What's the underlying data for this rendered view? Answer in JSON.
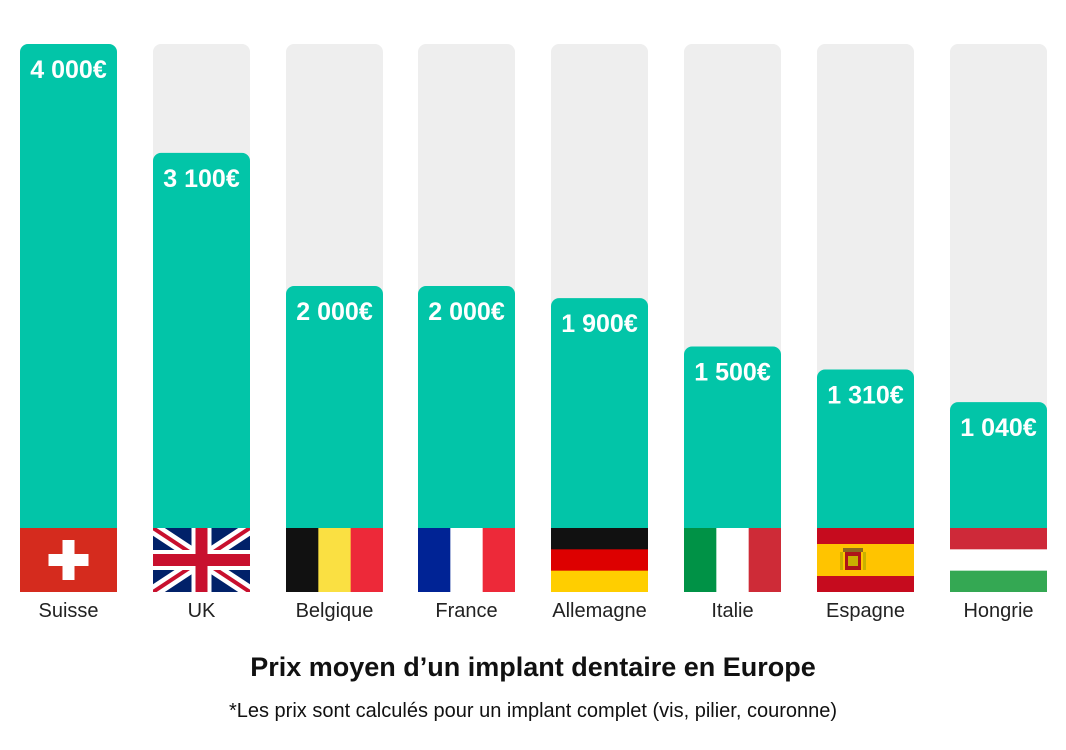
{
  "chart_data": {
    "type": "bar",
    "title": "Prix moyen d’un implant dentaire en Europe",
    "subtitle": "*Les prix sont calculés pour un implant complet (vis, pilier, couronne)",
    "categories": [
      "Suisse",
      "UK",
      "Belgique",
      "France",
      "Allemagne",
      "Italie",
      "Espagne",
      "Hongrie"
    ],
    "values": [
      4000,
      3100,
      2000,
      2000,
      1900,
      1500,
      1310,
      1040
    ],
    "value_labels": [
      "4 000€",
      "3 100€",
      "2 000€",
      "2 000€",
      "1 900€",
      "1 500€",
      "1 310€",
      "1 040€"
    ],
    "ylim": [
      0,
      4000
    ],
    "grid": false,
    "legend": "none",
    "flag_icons": [
      "swiss-flag-icon",
      "uk-flag-icon",
      "belgian-flag-icon",
      "french-flag-icon",
      "german-flag-icon",
      "italian-flag-icon",
      "spanish-flag-icon",
      "hungarian-flag-icon"
    ],
    "colors": {
      "bar": "#02c5a8",
      "track": "#eeeeee",
      "value_text": "#ffffff"
    }
  }
}
